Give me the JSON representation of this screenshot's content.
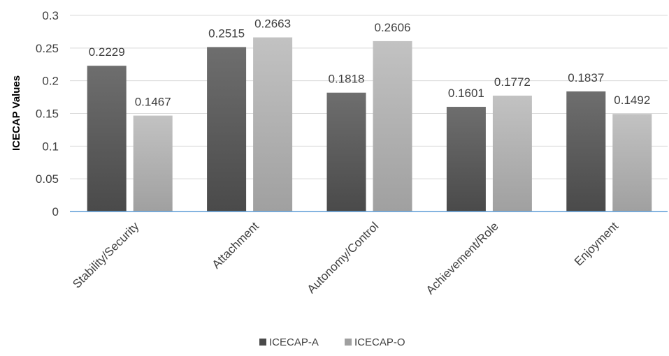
{
  "chart_data": {
    "type": "bar",
    "title": "",
    "xlabel": "",
    "ylabel": "ICECAP Values",
    "ylim": [
      0,
      0.3
    ],
    "yticks": [
      "0",
      "0.05",
      "0.1",
      "0.15",
      "0.2",
      "0.25",
      "0.3"
    ],
    "grid": true,
    "legend_position": "bottom",
    "categories": [
      "Stability/Security",
      "Attachment",
      "Autonomy/Control",
      "Achievement/Role",
      "Enjoyment"
    ],
    "series": [
      {
        "name": "ICECAP-A",
        "values": [
          0.2229,
          0.2515,
          0.1818,
          0.1601,
          0.1837
        ],
        "labels": [
          "0.2229",
          "0.2515",
          "0.1818",
          "0.1601",
          "0.1837"
        ],
        "color_top": "#6e6e6e",
        "color_bottom": "#4a4a4a"
      },
      {
        "name": "ICECAP-O",
        "values": [
          0.1467,
          0.2663,
          0.2606,
          0.1772,
          0.1492
        ],
        "labels": [
          "0.1467",
          "0.2663",
          "0.2606",
          "0.1772",
          "0.1492"
        ],
        "color_top": "#c2c2c2",
        "color_bottom": "#a0a0a0"
      }
    ],
    "colors": {
      "grid": "#d9d9d9",
      "axis": "#5b9bd5"
    }
  }
}
